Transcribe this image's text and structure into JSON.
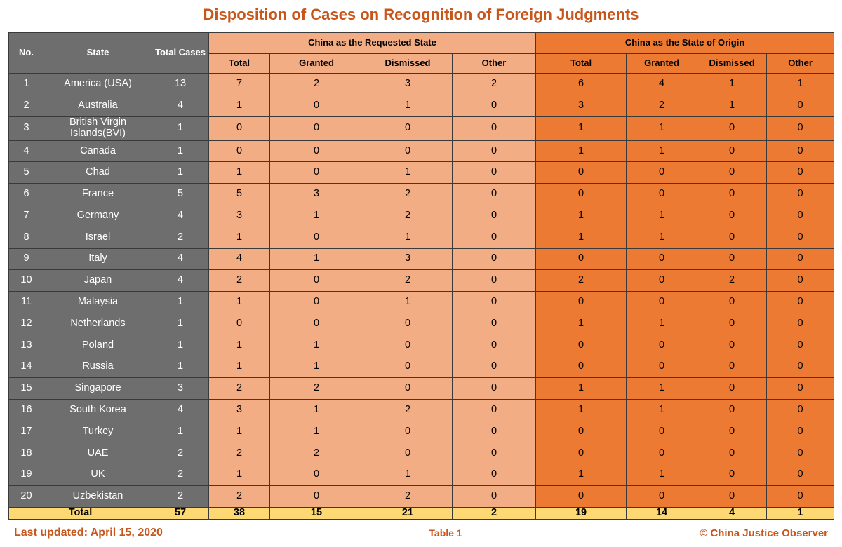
{
  "title": "Disposition of Cases on Recognition of Foreign Judgments",
  "colors": {
    "title": "#c8561b",
    "left_columns": "#6e6e6e",
    "requested_state": "#f2ad85",
    "state_of_origin": "#ec7a33",
    "total_row": "#fdd873"
  },
  "headers": {
    "no": "No.",
    "state": "State",
    "total_cases": "Total Cases",
    "requested_group": "China as  the Requested State",
    "origin_group": "China as the State of Origin",
    "total": "Total",
    "granted": "Granted",
    "dismissed": "Dismissed",
    "other": "Other"
  },
  "chart_data": {
    "type": "table",
    "title": "Disposition of Cases on Recognition of Foreign Judgments",
    "columns": [
      "No.",
      "State",
      "Total Cases",
      "Requested Total",
      "Requested Granted",
      "Requested Dismissed",
      "Requested Other",
      "Origin Total",
      "Origin Granted",
      "Origin Dismissed",
      "Origin Other"
    ],
    "rows": [
      [
        "1",
        "America (USA)",
        13,
        7,
        2,
        3,
        2,
        6,
        4,
        1,
        1
      ],
      [
        "2",
        "Australia",
        4,
        1,
        0,
        1,
        0,
        3,
        2,
        1,
        0
      ],
      [
        "3",
        "British Virgin Islands(BVI)",
        1,
        0,
        0,
        0,
        0,
        1,
        1,
        0,
        0
      ],
      [
        "4",
        "Canada",
        1,
        0,
        0,
        0,
        0,
        1,
        1,
        0,
        0
      ],
      [
        "5",
        "Chad",
        1,
        1,
        0,
        1,
        0,
        0,
        0,
        0,
        0
      ],
      [
        "6",
        "France",
        5,
        5,
        3,
        2,
        0,
        0,
        0,
        0,
        0
      ],
      [
        "7",
        "Germany",
        4,
        3,
        1,
        2,
        0,
        1,
        1,
        0,
        0
      ],
      [
        "8",
        "Israel",
        2,
        1,
        0,
        1,
        0,
        1,
        1,
        0,
        0
      ],
      [
        "9",
        "Italy",
        4,
        4,
        1,
        3,
        0,
        0,
        0,
        0,
        0
      ],
      [
        "10",
        "Japan",
        4,
        2,
        0,
        2,
        0,
        2,
        0,
        2,
        0
      ],
      [
        "11",
        "Malaysia",
        1,
        1,
        0,
        1,
        0,
        0,
        0,
        0,
        0
      ],
      [
        "12",
        "Netherlands",
        1,
        0,
        0,
        0,
        0,
        1,
        1,
        0,
        0
      ],
      [
        "13",
        "Poland",
        1,
        1,
        1,
        0,
        0,
        0,
        0,
        0,
        0
      ],
      [
        "14",
        "Russia",
        1,
        1,
        1,
        0,
        0,
        0,
        0,
        0,
        0
      ],
      [
        "15",
        "Singapore",
        3,
        2,
        2,
        0,
        0,
        1,
        1,
        0,
        0
      ],
      [
        "16",
        "South Korea",
        4,
        3,
        1,
        2,
        0,
        1,
        1,
        0,
        0
      ],
      [
        "17",
        "Turkey",
        1,
        1,
        1,
        0,
        0,
        0,
        0,
        0,
        0
      ],
      [
        "18",
        "UAE",
        2,
        2,
        2,
        0,
        0,
        0,
        0,
        0,
        0
      ],
      [
        "19",
        "UK",
        2,
        1,
        0,
        1,
        0,
        1,
        1,
        0,
        0
      ],
      [
        "20",
        "Uzbekistan",
        2,
        2,
        0,
        2,
        0,
        0,
        0,
        0,
        0
      ]
    ],
    "total_row": [
      "Total",
      57,
      38,
      15,
      21,
      2,
      19,
      14,
      4,
      1
    ]
  },
  "footer": {
    "last_updated": "Last updated: April 15, 2020",
    "table_label": "Table 1",
    "credit": "© China Justice Observer"
  }
}
